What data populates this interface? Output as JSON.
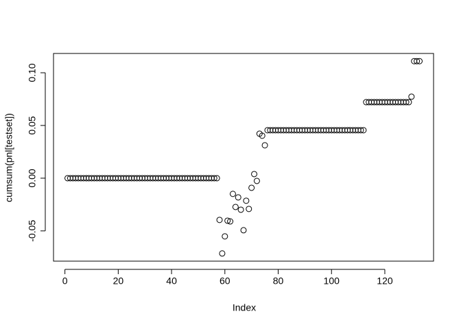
{
  "chart_data": {
    "type": "scatter",
    "xlabel": "Index",
    "ylabel": "cumsum(pnl[testset])",
    "x": [
      1,
      2,
      3,
      4,
      5,
      6,
      7,
      8,
      9,
      10,
      11,
      12,
      13,
      14,
      15,
      16,
      17,
      18,
      19,
      20,
      21,
      22,
      23,
      24,
      25,
      26,
      27,
      28,
      29,
      30,
      31,
      32,
      33,
      34,
      35,
      36,
      37,
      38,
      39,
      40,
      41,
      42,
      43,
      44,
      45,
      46,
      47,
      48,
      49,
      50,
      51,
      52,
      53,
      54,
      55,
      56,
      57,
      58,
      59,
      60,
      61,
      62,
      63,
      64,
      65,
      66,
      67,
      68,
      69,
      70,
      71,
      72,
      73,
      74,
      75,
      76,
      77,
      78,
      79,
      80,
      81,
      82,
      83,
      84,
      85,
      86,
      87,
      88,
      89,
      90,
      91,
      92,
      93,
      94,
      95,
      96,
      97,
      98,
      99,
      100,
      101,
      102,
      103,
      104,
      105,
      106,
      107,
      108,
      109,
      110,
      111,
      112,
      113,
      114,
      115,
      116,
      117,
      118,
      119,
      120,
      121,
      122,
      123,
      124,
      125,
      126,
      127,
      128,
      129,
      130,
      131,
      132,
      133
    ],
    "values": [
      0,
      0,
      0,
      0,
      0,
      0,
      0,
      0,
      0,
      0,
      0,
      0,
      0,
      0,
      0,
      0,
      0,
      0,
      0,
      0,
      0,
      0,
      0,
      0,
      0,
      0,
      0,
      0,
      0,
      0,
      0,
      0,
      0,
      0,
      0,
      0,
      0,
      0,
      0,
      0,
      0,
      0,
      0,
      0,
      0,
      0,
      0,
      0,
      0,
      0,
      0,
      0,
      0,
      0,
      0,
      0,
      0,
      -0.0396,
      -0.0714,
      -0.0552,
      -0.0403,
      -0.041,
      -0.0149,
      -0.0273,
      -0.0182,
      -0.0299,
      -0.0494,
      -0.0214,
      -0.0292,
      -0.0091,
      0.0039,
      -0.0026,
      0.0422,
      0.0403,
      0.0312,
      0.0455,
      0.0455,
      0.0455,
      0.0455,
      0.0455,
      0.0455,
      0.0455,
      0.0455,
      0.0455,
      0.0455,
      0.0455,
      0.0455,
      0.0455,
      0.0455,
      0.0455,
      0.0455,
      0.0455,
      0.0455,
      0.0455,
      0.0455,
      0.0455,
      0.0455,
      0.0455,
      0.0455,
      0.0455,
      0.0455,
      0.0455,
      0.0455,
      0.0455,
      0.0455,
      0.0455,
      0.0455,
      0.0455,
      0.0455,
      0.0455,
      0.0455,
      0.0455,
      0.0721,
      0.0721,
      0.0721,
      0.0721,
      0.0721,
      0.0721,
      0.0721,
      0.0721,
      0.0721,
      0.0721,
      0.0721,
      0.0721,
      0.0721,
      0.0721,
      0.0721,
      0.0721,
      0.0721,
      0.0773,
      0.111,
      0.111,
      0.111
    ],
    "color": "#000000",
    "xlim": [
      -4.28,
      138.28
    ],
    "xticks": [
      0,
      20,
      40,
      60,
      80,
      100,
      120
    ],
    "ylim": [
      -0.0787,
      0.1183
    ],
    "yticks": [
      -0.05,
      {
        "value": 0,
        "label": "0.00"
      },
      0.05,
      {
        "value": 0.1,
        "label": "0.10"
      }
    ]
  }
}
